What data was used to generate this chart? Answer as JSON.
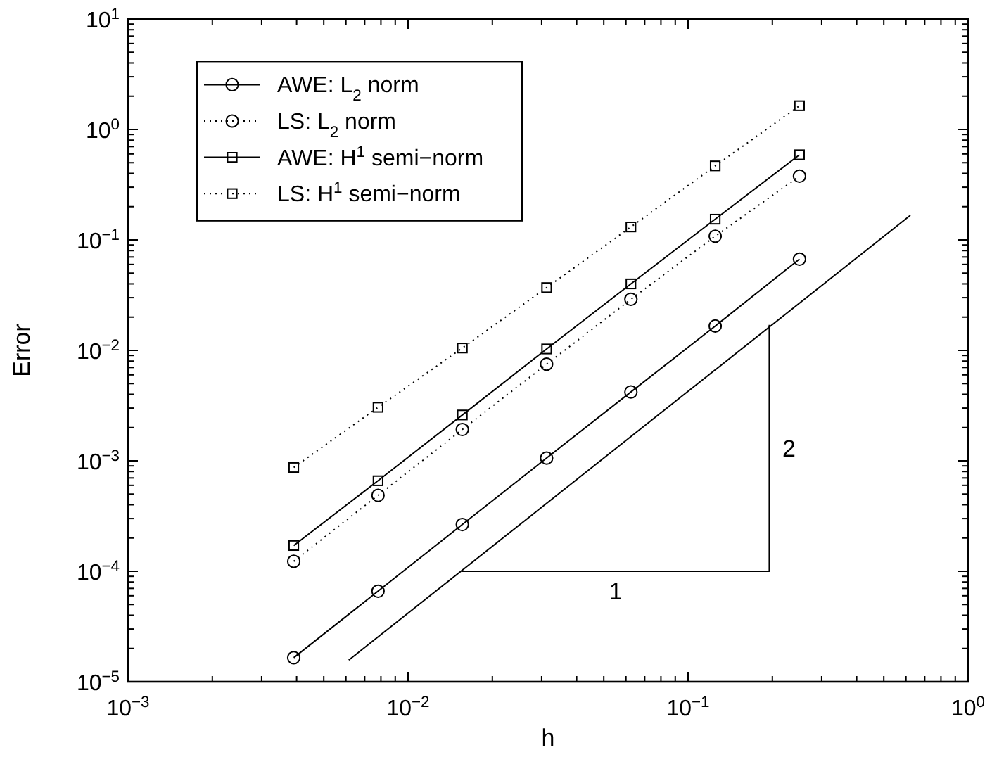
{
  "chart_data": {
    "type": "line",
    "xlabel": "h",
    "ylabel": "Error",
    "log": "xy",
    "legend": "top left",
    "x": [
      0.00390625,
      0.0078125,
      0.015625,
      0.03125,
      0.0625,
      0.125,
      0.25
    ],
    "xlim": [
      0.001,
      1
    ],
    "ylim": [
      1e-05,
      10
    ],
    "xticks": [
      {
        "value": 0.001,
        "label": "10$^{−3}$"
      },
      {
        "value": 0.002,
        "label": null
      },
      {
        "value": 0.003,
        "label": null
      },
      {
        "value": 0.004,
        "label": null
      },
      {
        "value": 0.005,
        "label": null
      },
      {
        "value": 0.006,
        "label": null
      },
      {
        "value": 0.007,
        "label": null
      },
      {
        "value": 0.008,
        "label": null
      },
      {
        "value": 0.009,
        "label": null
      },
      {
        "value": 0.01,
        "label": "10$^{−2}$"
      },
      {
        "value": 0.02,
        "label": null
      },
      {
        "value": 0.03,
        "label": null
      },
      {
        "value": 0.04,
        "label": null
      },
      {
        "value": 0.05,
        "label": null
      },
      {
        "value": 0.06,
        "label": null
      },
      {
        "value": 0.07,
        "label": null
      },
      {
        "value": 0.08,
        "label": null
      },
      {
        "value": 0.09,
        "label": null
      },
      {
        "value": 0.1,
        "label": "10$^{−1}$"
      },
      {
        "value": 0.2,
        "label": null
      },
      {
        "value": 0.3,
        "label": null
      },
      {
        "value": 0.4,
        "label": null
      },
      {
        "value": 0.5,
        "label": null
      },
      {
        "value": 0.6,
        "label": null
      },
      {
        "value": 0.7,
        "label": null
      },
      {
        "value": 0.8,
        "label": null
      },
      {
        "value": 0.9,
        "label": null
      },
      {
        "value": 1,
        "label": "10$^{0}$"
      }
    ],
    "yticks": [
      {
        "value": 1e-05,
        "label": "10$^{−5}$"
      },
      {
        "value": 2e-05,
        "label": null
      },
      {
        "value": 3e-05,
        "label": null
      },
      {
        "value": 4e-05,
        "label": null
      },
      {
        "value": 5e-05,
        "label": null
      },
      {
        "value": 6e-05,
        "label": null
      },
      {
        "value": 7e-05,
        "label": null
      },
      {
        "value": 8e-05,
        "label": null
      },
      {
        "value": 9e-05,
        "label": null
      },
      {
        "value": 0.0001,
        "label": "10$^{−4}$"
      },
      {
        "value": 0.0002,
        "label": null
      },
      {
        "value": 0.0003,
        "label": null
      },
      {
        "value": 0.0004,
        "label": null
      },
      {
        "value": 0.0005,
        "label": null
      },
      {
        "value": 0.0006,
        "label": null
      },
      {
        "value": 0.0007,
        "label": null
      },
      {
        "value": 0.0008,
        "label": null
      },
      {
        "value": 0.0009,
        "label": null
      },
      {
        "value": 0.001,
        "label": "10$^{−3}$"
      },
      {
        "value": 0.002,
        "label": null
      },
      {
        "value": 0.003,
        "label": null
      },
      {
        "value": 0.004,
        "label": null
      },
      {
        "value": 0.005,
        "label": null
      },
      {
        "value": 0.006,
        "label": null
      },
      {
        "value": 0.007,
        "label": null
      },
      {
        "value": 0.008,
        "label": null
      },
      {
        "value": 0.009,
        "label": null
      },
      {
        "value": 0.01,
        "label": "10$^{−2}$"
      },
      {
        "value": 0.02,
        "label": null
      },
      {
        "value": 0.03,
        "label": null
      },
      {
        "value": 0.04,
        "label": null
      },
      {
        "value": 0.05,
        "label": null
      },
      {
        "value": 0.06,
        "label": null
      },
      {
        "value": 0.07,
        "label": null
      },
      {
        "value": 0.08,
        "label": null
      },
      {
        "value": 0.09,
        "label": null
      },
      {
        "value": 0.1,
        "label": "10$^{−1}$"
      },
      {
        "value": 0.2,
        "label": null
      },
      {
        "value": 0.3,
        "label": null
      },
      {
        "value": 0.4,
        "label": null
      },
      {
        "value": 0.5,
        "label": null
      },
      {
        "value": 0.6,
        "label": null
      },
      {
        "value": 0.7,
        "label": null
      },
      {
        "value": 0.8,
        "label": null
      },
      {
        "value": 0.9,
        "label": null
      },
      {
        "value": 1,
        "label": "10$^{0}$"
      },
      {
        "value": 2,
        "label": null
      },
      {
        "value": 3,
        "label": null
      },
      {
        "value": 4,
        "label": null
      },
      {
        "value": 5,
        "label": null
      },
      {
        "value": 6,
        "label": null
      },
      {
        "value": 7,
        "label": null
      },
      {
        "value": 8,
        "label": null
      },
      {
        "value": 9,
        "label": null
      },
      {
        "value": 10,
        "label": "10$^{1}$"
      }
    ],
    "series": [
      {
        "name": "AWE: L$_{2}$ norm",
        "color": "#000000",
        "marker": "circle",
        "line_style": "solid",
        "values": [
          1.65e-05,
          6.6e-05,
          0.000265,
          0.00106,
          0.0042,
          0.0166,
          0.067
        ]
      },
      {
        "name": "LS: L$_{2}$ norm",
        "color": "#000000",
        "marker": "circle",
        "line_style": "dotted",
        "values": [
          0.000123,
          0.000487,
          0.00192,
          0.0075,
          0.029,
          0.108,
          0.378
        ]
      },
      {
        "name": "AWE: H$^{1}$ semi−norm",
        "color": "#000000",
        "marker": "square",
        "line_style": "solid",
        "values": [
          0.000171,
          0.00066,
          0.0026,
          0.0103,
          0.04,
          0.154,
          0.59
        ]
      },
      {
        "name": "LS: H$^{1}$ semi−norm",
        "color": "#000000",
        "marker": "square",
        "line_style": "dotted",
        "values": [
          0.00087,
          0.00305,
          0.0105,
          0.037,
          0.131,
          0.468,
          1.64
        ]
      },
      {
        "color": "#000000",
        "marker": "none",
        "line_style": "solid",
        "x": [
          0.00614,
          0.622
        ],
        "values": [
          1.57e-05,
          0.167
        ]
      },
      {
        "color": "#000000",
        "marker": "none",
        "line_style": "solid",
        "x": [
          0.0156,
          0.195,
          0.195
        ],
        "values": [
          0.0001,
          0.0001,
          0.017
        ]
      }
    ],
    "annotations": [
      "1",
      "2"
    ]
  }
}
